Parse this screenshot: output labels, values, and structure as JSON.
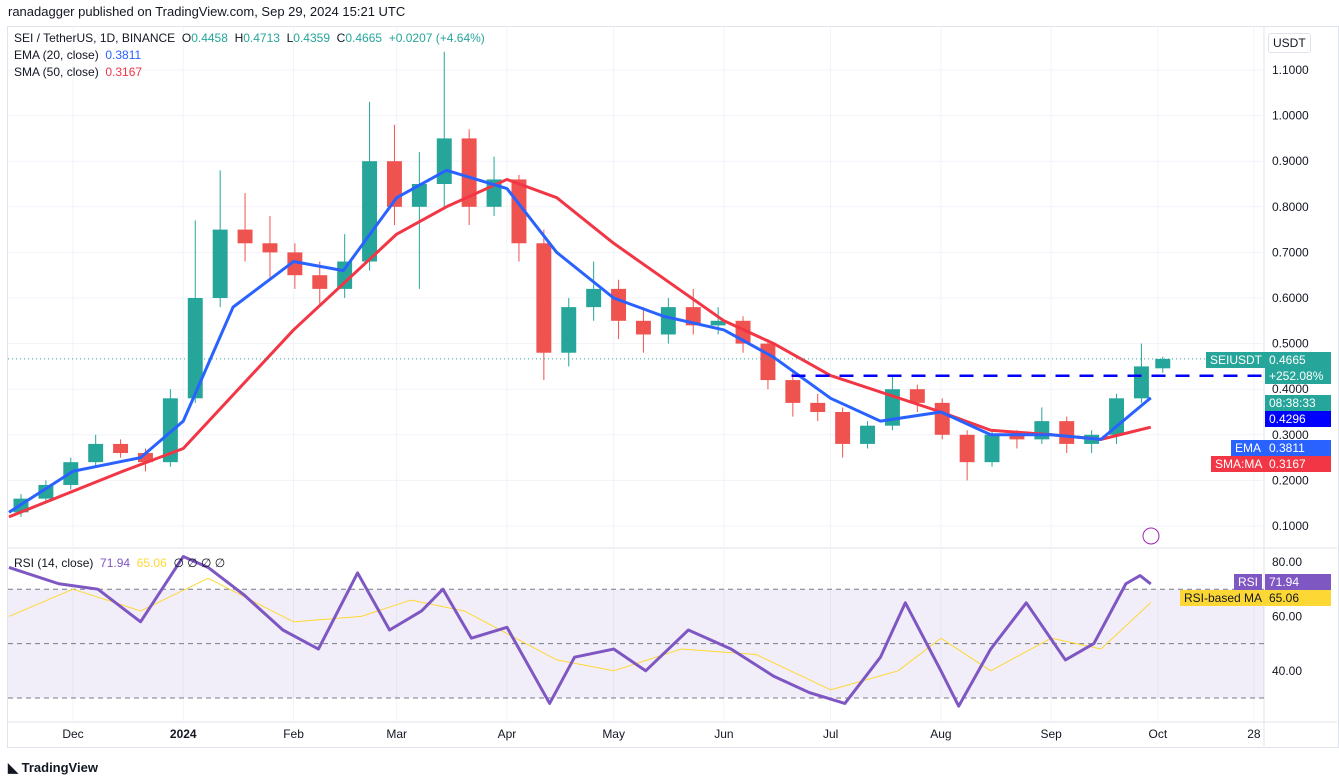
{
  "header": {
    "published": "ranadagger published on TradingView.com, Sep 29, 2024 15:21 UTC"
  },
  "legend": {
    "symbol": "SEI / TetherUS, 1D, BINANCE",
    "o_label": "O",
    "o": "0.4458",
    "h_label": "H",
    "h": "0.4713",
    "l_label": "L",
    "l": "0.4359",
    "c_label": "C",
    "c": "0.4665",
    "change": "+0.0207 (+4.64%)",
    "ema": "EMA (20, close)",
    "ema_val": "0.3811",
    "sma": "SMA (50, close)",
    "sma_val": "0.3167",
    "rsi": "RSI (14, close)",
    "rsi_val": "71.94",
    "rsi_ma_val": "65.06",
    "extra": "∅ ∅ ∅ ∅"
  },
  "axis": {
    "currency": "USDT",
    "price_labels": {
      "symbol": "SEIUSDT",
      "price": "0.4665",
      "change": "+252.08%",
      "countdown": "08:38:33",
      "level": "0.4296",
      "ema_tag": "EMA",
      "ema": "0.3811",
      "sma_tag": "SMA:MA",
      "sma": "0.3167",
      "rsi_tag": "RSI",
      "rsi": "71.94",
      "rsi_ma_tag": "RSI-based MA",
      "rsi_ma": "65.06"
    }
  },
  "footer": {
    "brand": "TradingView"
  },
  "colors": {
    "up": "#26a69a",
    "down": "#ef5350",
    "ema": "#2962ff",
    "sma": "#f23645",
    "rsi": "#7e57c2",
    "rsi_ma": "#fdd835",
    "level": "#0000ff"
  },
  "chart_data": {
    "type": "candlestick",
    "price_ticks": [
      0.1,
      0.2,
      0.3,
      0.4,
      0.5,
      0.6,
      0.7,
      0.8,
      0.9,
      1.0,
      1.1
    ],
    "price_range": [
      0.06,
      1.18
    ],
    "time_ticks": [
      "Dec",
      "2024",
      "Feb",
      "Mar",
      "Apr",
      "May",
      "Jun",
      "Jul",
      "Aug",
      "Sep",
      "Oct",
      "28"
    ],
    "time_tick_dates": [
      "2023-12-01",
      "2024-01-01",
      "2024-02-01",
      "2024-03-01",
      "2024-04-01",
      "2024-05-01",
      "2024-06-01",
      "2024-07-01",
      "2024-08-01",
      "2024-09-01",
      "2024-10-01",
      "2024-10-28"
    ],
    "candles": [
      [
        "2023-11-13",
        0.13,
        0.17,
        0.12,
        0.16
      ],
      [
        "2023-11-20",
        0.16,
        0.2,
        0.15,
        0.19
      ],
      [
        "2023-11-27",
        0.19,
        0.25,
        0.18,
        0.24
      ],
      [
        "2023-12-04",
        0.24,
        0.3,
        0.23,
        0.28
      ],
      [
        "2023-12-11",
        0.28,
        0.29,
        0.25,
        0.26
      ],
      [
        "2023-12-18",
        0.26,
        0.27,
        0.22,
        0.24
      ],
      [
        "2023-12-25",
        0.24,
        0.4,
        0.23,
        0.38
      ],
      [
        "2024-01-01",
        0.38,
        0.77,
        0.37,
        0.6
      ],
      [
        "2024-01-08",
        0.6,
        0.88,
        0.58,
        0.75
      ],
      [
        "2024-01-15",
        0.75,
        0.83,
        0.68,
        0.72
      ],
      [
        "2024-01-22",
        0.72,
        0.78,
        0.64,
        0.7
      ],
      [
        "2024-01-29",
        0.7,
        0.72,
        0.62,
        0.65
      ],
      [
        "2024-02-05",
        0.65,
        0.68,
        0.58,
        0.62
      ],
      [
        "2024-02-12",
        0.62,
        0.74,
        0.6,
        0.68
      ],
      [
        "2024-02-19",
        0.68,
        1.03,
        0.66,
        0.9
      ],
      [
        "2024-02-26",
        0.9,
        0.98,
        0.76,
        0.8
      ],
      [
        "2024-03-04",
        0.8,
        0.92,
        0.62,
        0.85
      ],
      [
        "2024-03-11",
        0.85,
        1.14,
        0.8,
        0.95
      ],
      [
        "2024-03-18",
        0.95,
        0.97,
        0.76,
        0.8
      ],
      [
        "2024-03-25",
        0.8,
        0.91,
        0.78,
        0.86
      ],
      [
        "2024-04-01",
        0.86,
        0.87,
        0.68,
        0.72
      ],
      [
        "2024-04-08",
        0.72,
        0.75,
        0.42,
        0.48
      ],
      [
        "2024-04-15",
        0.48,
        0.6,
        0.45,
        0.58
      ],
      [
        "2024-04-22",
        0.58,
        0.68,
        0.55,
        0.62
      ],
      [
        "2024-04-29",
        0.62,
        0.64,
        0.51,
        0.55
      ],
      [
        "2024-05-06",
        0.55,
        0.58,
        0.48,
        0.52
      ],
      [
        "2024-05-13",
        0.52,
        0.6,
        0.5,
        0.58
      ],
      [
        "2024-05-20",
        0.58,
        0.62,
        0.52,
        0.54
      ],
      [
        "2024-05-27",
        0.54,
        0.58,
        0.52,
        0.55
      ],
      [
        "2024-06-03",
        0.55,
        0.56,
        0.48,
        0.5
      ],
      [
        "2024-06-10",
        0.5,
        0.51,
        0.4,
        0.42
      ],
      [
        "2024-06-17",
        0.42,
        0.44,
        0.34,
        0.37
      ],
      [
        "2024-06-24",
        0.37,
        0.39,
        0.33,
        0.35
      ],
      [
        "2024-07-01",
        0.35,
        0.36,
        0.25,
        0.28
      ],
      [
        "2024-07-08",
        0.28,
        0.33,
        0.27,
        0.32
      ],
      [
        "2024-07-15",
        0.32,
        0.43,
        0.31,
        0.4
      ],
      [
        "2024-07-22",
        0.4,
        0.41,
        0.35,
        0.37
      ],
      [
        "2024-07-29",
        0.37,
        0.38,
        0.29,
        0.3
      ],
      [
        "2024-08-05",
        0.3,
        0.31,
        0.2,
        0.24
      ],
      [
        "2024-08-12",
        0.24,
        0.31,
        0.23,
        0.3
      ],
      [
        "2024-08-19",
        0.3,
        0.31,
        0.27,
        0.29
      ],
      [
        "2024-08-26",
        0.29,
        0.36,
        0.28,
        0.33
      ],
      [
        "2024-09-02",
        0.33,
        0.34,
        0.26,
        0.28
      ],
      [
        "2024-09-09",
        0.28,
        0.31,
        0.26,
        0.3
      ],
      [
        "2024-09-16",
        0.3,
        0.39,
        0.28,
        0.38
      ],
      [
        "2024-09-23",
        0.38,
        0.5,
        0.37,
        0.45
      ],
      [
        "2024-09-29",
        0.4458,
        0.4713,
        0.4359,
        0.4665
      ]
    ],
    "ema20": [
      [
        "2023-11-13",
        0.13
      ],
      [
        "2023-12-01",
        0.22
      ],
      [
        "2023-12-20",
        0.25
      ],
      [
        "2024-01-01",
        0.33
      ],
      [
        "2024-01-15",
        0.58
      ],
      [
        "2024-02-01",
        0.68
      ],
      [
        "2024-02-15",
        0.66
      ],
      [
        "2024-03-01",
        0.82
      ],
      [
        "2024-03-15",
        0.88
      ],
      [
        "2024-04-01",
        0.84
      ],
      [
        "2024-04-15",
        0.7
      ],
      [
        "2024-05-01",
        0.6
      ],
      [
        "2024-05-15",
        0.56
      ],
      [
        "2024-06-01",
        0.53
      ],
      [
        "2024-06-15",
        0.47
      ],
      [
        "2024-07-01",
        0.38
      ],
      [
        "2024-07-15",
        0.33
      ],
      [
        "2024-08-01",
        0.35
      ],
      [
        "2024-08-15",
        0.3
      ],
      [
        "2024-09-01",
        0.3
      ],
      [
        "2024-09-15",
        0.29
      ],
      [
        "2024-09-29",
        0.3811
      ]
    ],
    "sma50": [
      [
        "2023-11-13",
        0.12
      ],
      [
        "2023-12-15",
        0.22
      ],
      [
        "2024-01-01",
        0.27
      ],
      [
        "2024-02-01",
        0.53
      ],
      [
        "2024-03-01",
        0.74
      ],
      [
        "2024-03-15",
        0.8
      ],
      [
        "2024-04-01",
        0.86
      ],
      [
        "2024-04-15",
        0.82
      ],
      [
        "2024-05-01",
        0.72
      ],
      [
        "2024-06-01",
        0.55
      ],
      [
        "2024-06-15",
        0.5
      ],
      [
        "2024-07-01",
        0.43
      ],
      [
        "2024-08-01",
        0.35
      ],
      [
        "2024-08-15",
        0.31
      ],
      [
        "2024-09-01",
        0.3
      ],
      [
        "2024-09-15",
        0.29
      ],
      [
        "2024-09-29",
        0.3167
      ]
    ],
    "level": {
      "value": 0.4296,
      "from": "2024-06-20"
    },
    "rsi": {
      "ticks": [
        40,
        60,
        80
      ],
      "bands": [
        30,
        50,
        70
      ],
      "range": [
        23,
        85
      ],
      "values": [
        [
          "2023-11-13",
          78
        ],
        [
          "2023-11-27",
          72
        ],
        [
          "2023-12-08",
          70
        ],
        [
          "2023-12-20",
          58
        ],
        [
          "2024-01-01",
          82
        ],
        [
          "2024-01-08",
          78
        ],
        [
          "2024-01-18",
          68
        ],
        [
          "2024-01-29",
          55
        ],
        [
          "2024-02-08",
          48
        ],
        [
          "2024-02-19",
          76
        ],
        [
          "2024-02-28",
          55
        ],
        [
          "2024-03-08",
          62
        ],
        [
          "2024-03-14",
          70
        ],
        [
          "2024-03-22",
          52
        ],
        [
          "2024-04-01",
          56
        ],
        [
          "2024-04-13",
          28
        ],
        [
          "2024-04-20",
          45
        ],
        [
          "2024-05-01",
          48
        ],
        [
          "2024-05-10",
          40
        ],
        [
          "2024-05-22",
          55
        ],
        [
          "2024-06-03",
          48
        ],
        [
          "2024-06-15",
          38
        ],
        [
          "2024-06-25",
          32
        ],
        [
          "2024-07-05",
          28
        ],
        [
          "2024-07-15",
          45
        ],
        [
          "2024-07-22",
          65
        ],
        [
          "2024-08-01",
          40
        ],
        [
          "2024-08-06",
          27
        ],
        [
          "2024-08-15",
          48
        ],
        [
          "2024-08-25",
          65
        ],
        [
          "2024-09-05",
          44
        ],
        [
          "2024-09-13",
          50
        ],
        [
          "2024-09-22",
          72
        ],
        [
          "2024-09-26",
          75
        ],
        [
          "2024-09-29",
          71.94
        ]
      ],
      "ma": [
        [
          "2023-11-13",
          60
        ],
        [
          "2023-12-01",
          70
        ],
        [
          "2023-12-20",
          62
        ],
        [
          "2024-01-08",
          74
        ],
        [
          "2024-02-01",
          58
        ],
        [
          "2024-02-20",
          60
        ],
        [
          "2024-03-05",
          66
        ],
        [
          "2024-03-20",
          62
        ],
        [
          "2024-04-15",
          44
        ],
        [
          "2024-05-01",
          40
        ],
        [
          "2024-05-20",
          48
        ],
        [
          "2024-06-10",
          46
        ],
        [
          "2024-07-01",
          33
        ],
        [
          "2024-07-20",
          40
        ],
        [
          "2024-08-01",
          52
        ],
        [
          "2024-08-15",
          40
        ],
        [
          "2024-09-01",
          52
        ],
        [
          "2024-09-15",
          48
        ],
        [
          "2024-09-29",
          65.06
        ]
      ]
    }
  }
}
